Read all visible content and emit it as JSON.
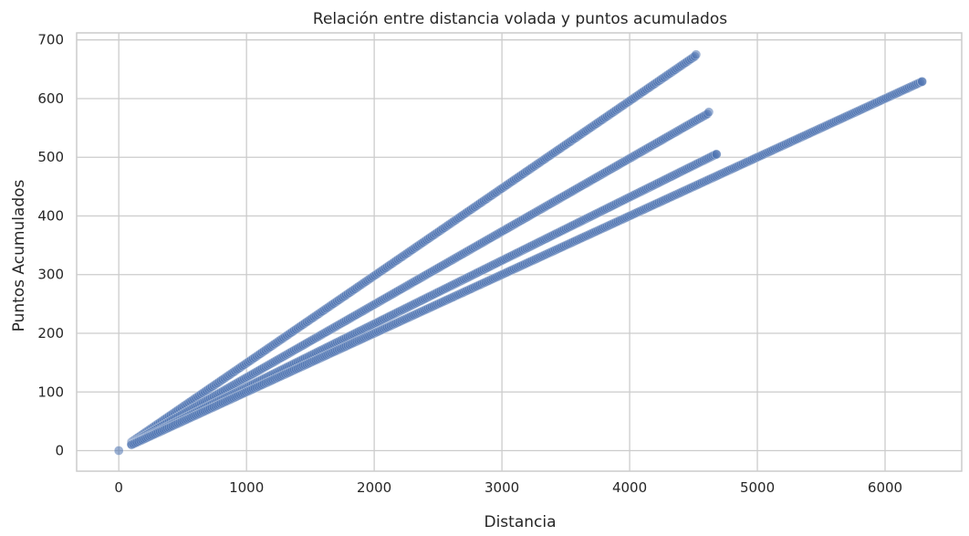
{
  "chart_data": {
    "type": "scatter",
    "title": "Relación entre distancia volada y puntos acumulados",
    "xlabel": "Distancia",
    "ylabel": "Puntos Acumulados",
    "xlim": [
      -330,
      6600
    ],
    "ylim": [
      -35,
      712
    ],
    "x_ticks": [
      0,
      1000,
      2000,
      3000,
      4000,
      5000,
      6000
    ],
    "y_ticks": [
      0,
      100,
      200,
      300,
      400,
      500,
      600,
      700
    ],
    "grid": true,
    "marker_color": "#4c72b0",
    "series": [
      {
        "x_range": [
          100,
          4520
        ],
        "slope": 0.149,
        "end_point": [
          4520,
          675
        ]
      },
      {
        "x_range": [
          100,
          4620
        ],
        "slope": 0.1245,
        "end_point": [
          4620,
          577
        ]
      },
      {
        "x_range": [
          100,
          4680
        ],
        "slope": 0.108,
        "end_point": [
          4680,
          505
        ]
      },
      {
        "x_range": [
          100,
          6290
        ],
        "slope": 0.1,
        "end_point": [
          6290,
          629
        ]
      }
    ],
    "extra_points": [
      [
        0,
        0
      ]
    ]
  }
}
